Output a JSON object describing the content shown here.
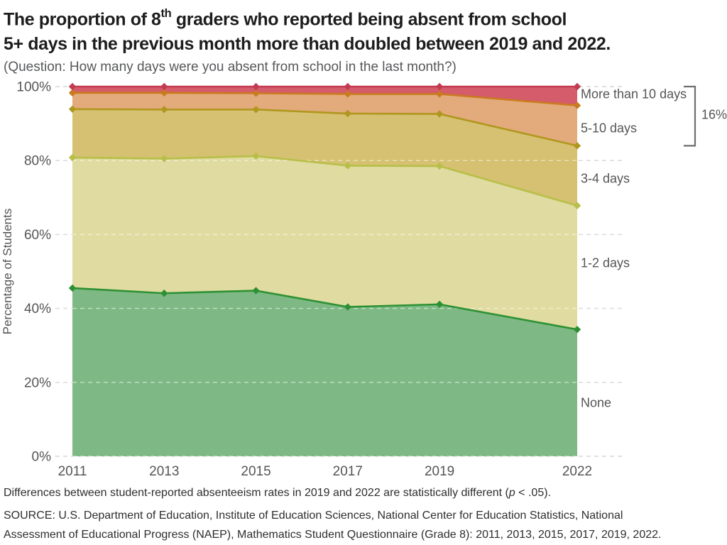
{
  "header": {
    "title_pre": "The proportion of 8",
    "title_sup": "th",
    "title_line1_rest": " graders who reported being absent from school",
    "title_line2": "5+ days in the previous month more than doubled between 2019 and 2022.",
    "subtitle": "(Question: How many days were you absent from school in the last month?)"
  },
  "chart_data": {
    "type": "area",
    "stacked": true,
    "x": [
      2011,
      2013,
      2015,
      2017,
      2019,
      2022
    ],
    "x_tick_labels": [
      "2011",
      "2013",
      "2015",
      "2017",
      "2019",
      "2022"
    ],
    "ylabel": "Percentage of Students",
    "ylim": [
      0,
      100
    ],
    "yticks": [
      0,
      20,
      40,
      60,
      80,
      100
    ],
    "ytick_labels": [
      "0%",
      "20%",
      "40%",
      "60%",
      "80%",
      "100%"
    ],
    "grid": "horizontal-dashed",
    "legend_position": "right-inline",
    "series": [
      {
        "name": "None",
        "values": [
          45.5,
          44.1,
          44.8,
          40.4,
          41.1,
          34.3
        ],
        "line_color": "#2d9134",
        "fill_color": "#7eb884"
      },
      {
        "name": "1-2 days",
        "values": [
          35.3,
          36.4,
          36.4,
          38.2,
          37.4,
          33.5
        ],
        "line_color": "#b8bf49",
        "fill_color": "#dfdba1"
      },
      {
        "name": "3-4 days",
        "values": [
          13.1,
          13.3,
          12.6,
          14.1,
          14.1,
          16.2
        ],
        "line_color": "#b0971f",
        "fill_color": "#d5c171"
      },
      {
        "name": "5-10 days",
        "values": [
          4.4,
          4.5,
          4.4,
          5.3,
          5.4,
          10.9
        ],
        "line_color": "#ca7b1e",
        "fill_color": "#e3aa7b"
      },
      {
        "name": "More than 10 days",
        "values": [
          1.7,
          1.7,
          1.8,
          2.0,
          2.0,
          5.1
        ],
        "line_color": "#c23c50",
        "fill_color": "#d45c6b"
      }
    ],
    "annotation": {
      "bracket_label": "16%",
      "bracket_from_pct": 84,
      "bracket_to_pct": 100
    }
  },
  "footnotes": {
    "note_pre": "Differences between student-reported absenteeism rates in 2019 and 2022 are statistically different (",
    "note_italic": "p",
    "note_post": " < .05).",
    "source_line1": "SOURCE: U.S. Department of Education, Institute of Education Sciences, National Center for Education Statistics, National",
    "source_line2": "Assessment of Educational Progress (NAEP), Mathematics Student Questionnaire (Grade 8): 2011, 2013, 2015, 2017, 2019, 2022."
  }
}
